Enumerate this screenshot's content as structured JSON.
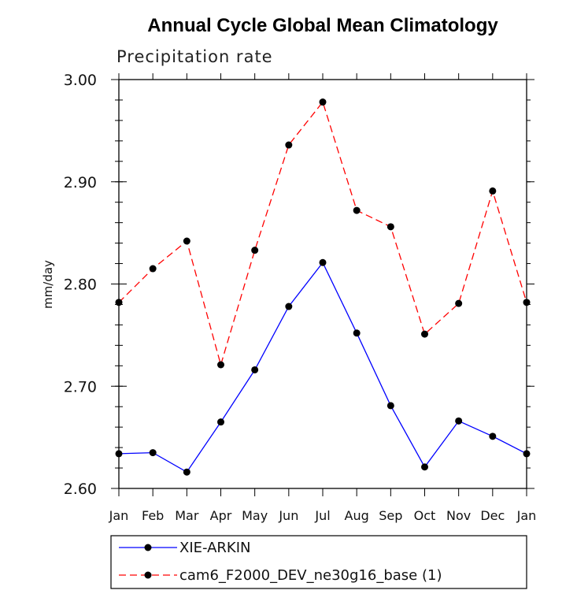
{
  "chart_data": {
    "type": "line",
    "title": "Annual Cycle Global Mean Climatology",
    "subtitle": "Precipitation rate",
    "xlabel": "",
    "ylabel": "mm/day",
    "categories": [
      "Jan",
      "Feb",
      "Mar",
      "Apr",
      "May",
      "Jun",
      "Jul",
      "Aug",
      "Sep",
      "Oct",
      "Nov",
      "Dec",
      "Jan"
    ],
    "ylim": [
      2.6,
      3.0
    ],
    "yticks": [
      "2.60",
      "2.70",
      "2.80",
      "2.90",
      "3.00"
    ],
    "series": [
      {
        "name": "XIE-ARKIN",
        "color": "#0000ff",
        "dash": "solid",
        "values": [
          2.634,
          2.635,
          2.616,
          2.665,
          2.716,
          2.778,
          2.821,
          2.752,
          2.681,
          2.621,
          2.666,
          2.651,
          2.634
        ]
      },
      {
        "name": "cam6_F2000_DEV_ne30g16_base (1)",
        "color": "#ff0000",
        "dash": "dashed",
        "values": [
          2.782,
          2.815,
          2.842,
          2.721,
          2.833,
          2.936,
          2.978,
          2.872,
          2.856,
          2.751,
          2.781,
          2.891,
          2.782
        ]
      }
    ],
    "legend_position": "bottom"
  }
}
